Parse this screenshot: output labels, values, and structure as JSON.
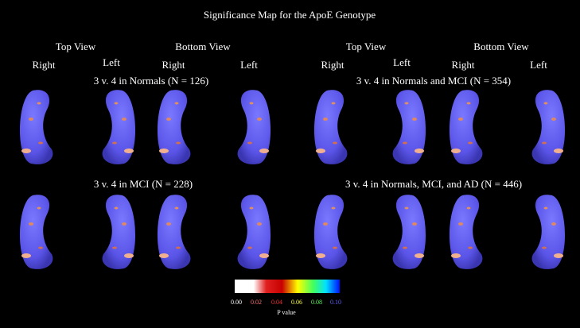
{
  "title": "Significance Map for the ApoE Genotype",
  "view_headers": [
    "Top View",
    "Bottom View",
    "Top View",
    "Bottom View"
  ],
  "side_labels": [
    "Right",
    "Left",
    "Right",
    "Left",
    "Right",
    "Left",
    "Right",
    "Left"
  ],
  "panels": [
    "3 v. 4 in Normals (N = 126)",
    "3 v. 4 in Normals and MCI (N = 354)",
    "3 v. 4 in MCI (N = 228)",
    "3 v. 4 in Normals, MCI, and AD (N = 446)"
  ],
  "colorbar": {
    "ticks": [
      "0.00",
      "0.02",
      "0.04",
      "0.06",
      "0.08",
      "0.10"
    ],
    "label": "P value"
  }
}
